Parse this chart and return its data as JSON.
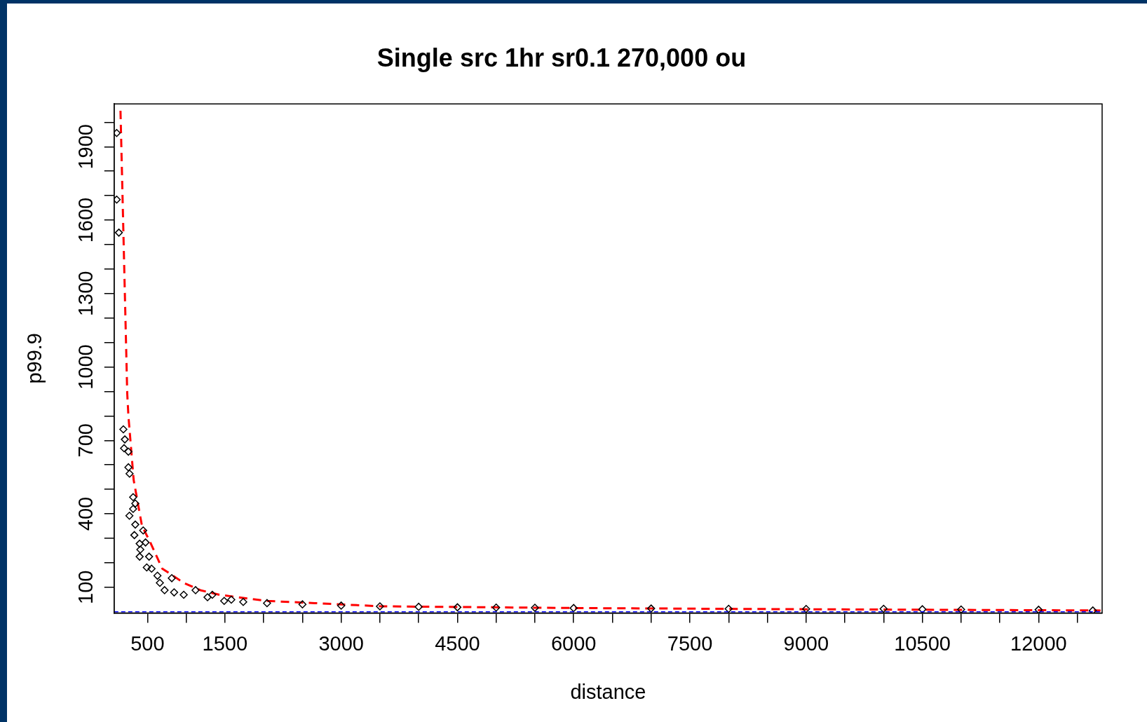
{
  "chart_data": {
    "type": "scatter",
    "title": "Single src 1hr sr0.1 270,000 ou",
    "xlabel": "distance",
    "ylabel": "p99.9",
    "xlim": [
      70,
      12820
    ],
    "ylim": [
      -5,
      2075
    ],
    "xticks": [
      500,
      {
        "value": 1000,
        "label": null
      },
      1500,
      {
        "value": 2000,
        "label": null
      },
      {
        "value": 2500,
        "label": null
      },
      3000,
      {
        "value": 3500,
        "label": null
      },
      {
        "value": 4000,
        "label": null
      },
      4500,
      {
        "value": 5000,
        "label": null
      },
      {
        "value": 5500,
        "label": null
      },
      6000,
      {
        "value": 6500,
        "label": null
      },
      {
        "value": 7000,
        "label": null
      },
      7500,
      {
        "value": 8000,
        "label": null
      },
      {
        "value": 8500,
        "label": null
      },
      9000,
      {
        "value": 9500,
        "label": null
      },
      {
        "value": 10000,
        "label": null
      },
      10500,
      {
        "value": 11000,
        "label": null
      },
      {
        "value": 11500,
        "label": null
      },
      12000,
      {
        "value": 12500,
        "label": null
      }
    ],
    "yticks": [
      100,
      {
        "value": 200,
        "label": null
      },
      {
        "value": 300,
        "label": null
      },
      400,
      {
        "value": 500,
        "label": null
      },
      {
        "value": 600,
        "label": null
      },
      700,
      {
        "value": 800,
        "label": null
      },
      {
        "value": 900,
        "label": null
      },
      1000,
      {
        "value": 1100,
        "label": null
      },
      {
        "value": 1200,
        "label": null
      },
      1300,
      {
        "value": 1400,
        "label": null
      },
      {
        "value": 1500,
        "label": null
      },
      1600,
      {
        "value": 1700,
        "label": null
      },
      {
        "value": 1800,
        "label": null
      },
      1900,
      {
        "value": 2000,
        "label": null
      }
    ],
    "grid": false,
    "legend": false,
    "series": [
      {
        "type": "scatter",
        "marker": "diamond",
        "color": "#000000",
        "x": [
          103,
          103,
          131,
          189,
          208,
          198,
          254,
          254,
          269,
          315,
          343,
          315,
          267,
          343,
          331,
          445,
          399,
          408,
          399,
          475,
          521,
          491,
          553,
          629,
          660,
          721,
          814,
          844,
          968,
          1121,
          1275,
          1337,
          1490,
          1582,
          1736,
          2043,
          2500,
          3000,
          3500,
          4000,
          4500,
          5000,
          5500,
          6000,
          7000,
          8000,
          9000,
          10000,
          10500,
          11000,
          12000,
          12700
        ],
        "values": [
          1956,
          1684,
          1549,
          745,
          704,
          668,
          654,
          590,
          564,
          468,
          442,
          420,
          392,
          356,
          313,
          332,
          278,
          254,
          225,
          283,
          225,
          181,
          176,
          147,
          118,
          88,
          137,
          79,
          69,
          88,
          59,
          69,
          44,
          49,
          40,
          35,
          30,
          25,
          22,
          20,
          18,
          17,
          16,
          15,
          13,
          12,
          11,
          12,
          10,
          9,
          8,
          5
        ]
      },
      {
        "type": "line",
        "marker": "none",
        "line_style": "dashed",
        "color": "#ff0000",
        "x": [
          152,
          239,
          254,
          322,
          429,
          537,
          691,
          968,
          1183,
          1429,
          2043,
          2659,
          3519,
          6000,
          9000,
          12800
        ],
        "values": [
          2047,
          892,
          801,
          538,
          351,
          283,
          176,
          118,
          88,
          69,
          44,
          35,
          22,
          15,
          10,
          5
        ]
      }
    ],
    "ref_lines": [
      {
        "axis": "y",
        "value": 0,
        "color": "#0000ff",
        "line_style": "dashed"
      }
    ]
  }
}
